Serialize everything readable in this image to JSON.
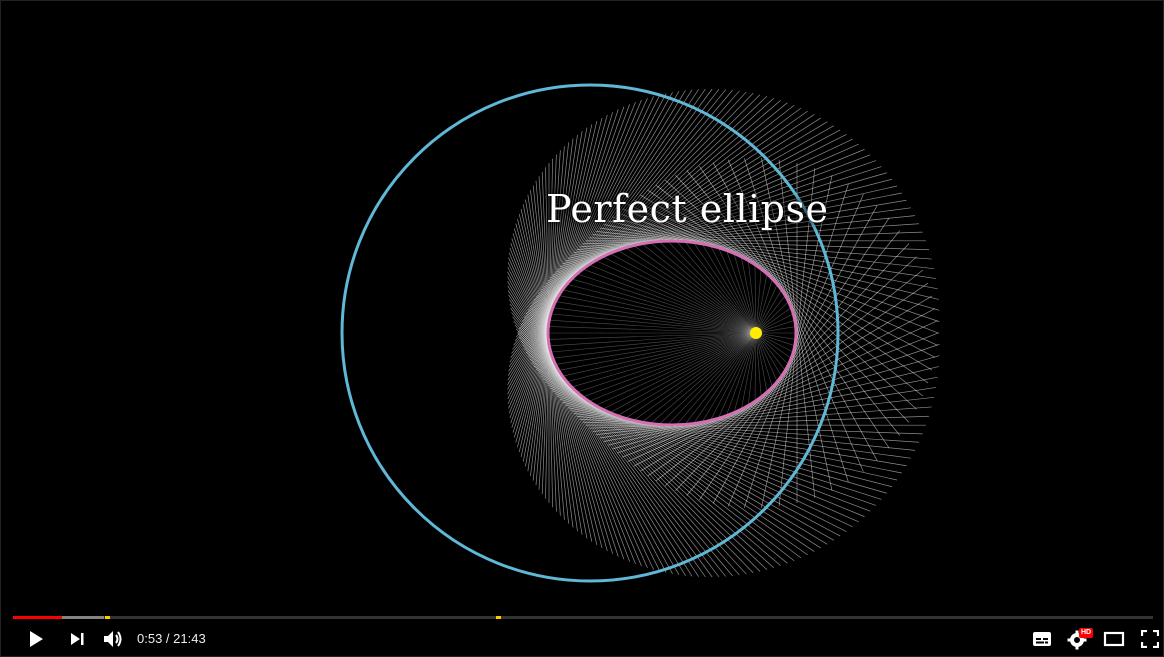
{
  "video": {
    "caption": "Perfect ellipse",
    "colors": {
      "circle": "#5fb8d6",
      "ellipse": "#d46fb4",
      "focus": "#ffee00",
      "lines": "#ffffff"
    }
  },
  "player": {
    "current_time": "0:53",
    "separator": " / ",
    "duration": "21:43",
    "progress_played_fraction": 0.043,
    "progress_loaded_fraction": 0.08,
    "chapter_marker_fractions": [
      0.081,
      0.424
    ],
    "progress_color": "#ff0000",
    "marker_color": "#ffcc00"
  },
  "buttons": {
    "play": "play-icon",
    "next": "next-icon",
    "volume": "volume-icon",
    "subtitles": "subtitles-icon",
    "settings": "settings-icon",
    "settings_badge": "HD",
    "theater": "theater-mode-icon",
    "fullscreen": "fullscreen-icon"
  }
}
